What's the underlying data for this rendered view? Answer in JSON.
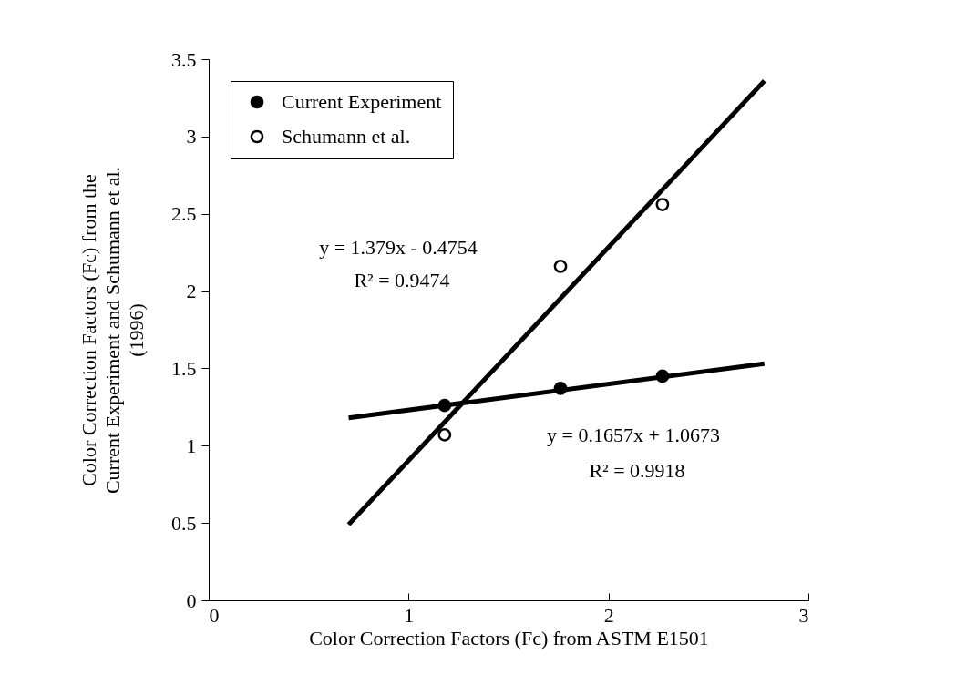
{
  "chart_data": {
    "type": "scatter",
    "xlabel": "Color Correction Factors (Fc) from ASTM E1501",
    "ylabel": "Color Correction Factors (Fc) from the Current Experiment and Schumann et al. (1996)",
    "xlim": [
      0,
      3
    ],
    "xticks": [
      0,
      1,
      2,
      3
    ],
    "ylim": [
      0,
      3.5
    ],
    "yticks": [
      0,
      0.5,
      1,
      1.5,
      2,
      2.5,
      3,
      3.5
    ],
    "grid": false,
    "legend": "top left",
    "series": [
      {
        "name": "Current Experiment",
        "color": "#000000",
        "marker": "circle",
        "x": [
          1.18,
          1.76,
          2.27
        ],
        "values": [
          1.26,
          1.37,
          1.45
        ]
      },
      {
        "name": "Schumann et al.",
        "color": "#ffffff",
        "marker": "circle",
        "x": [
          1.18,
          1.76,
          2.27
        ],
        "values": [
          1.07,
          2.16,
          2.56
        ]
      },
      {
        "type": "line",
        "color": "#000000",
        "marker": "none",
        "x": [
          0.7,
          2.78
        ],
        "values": [
          0.49,
          3.36
        ]
      },
      {
        "type": "line",
        "color": "#000000",
        "marker": "none",
        "x": [
          0.7,
          2.78
        ],
        "values": [
          1.18,
          1.53
        ]
      }
    ],
    "annotations": [
      "y = 1.379x - 0.4754",
      "R² = 0.9474",
      "y = 0.1657x + 1.0673",
      "R² = 0.9918"
    ]
  }
}
